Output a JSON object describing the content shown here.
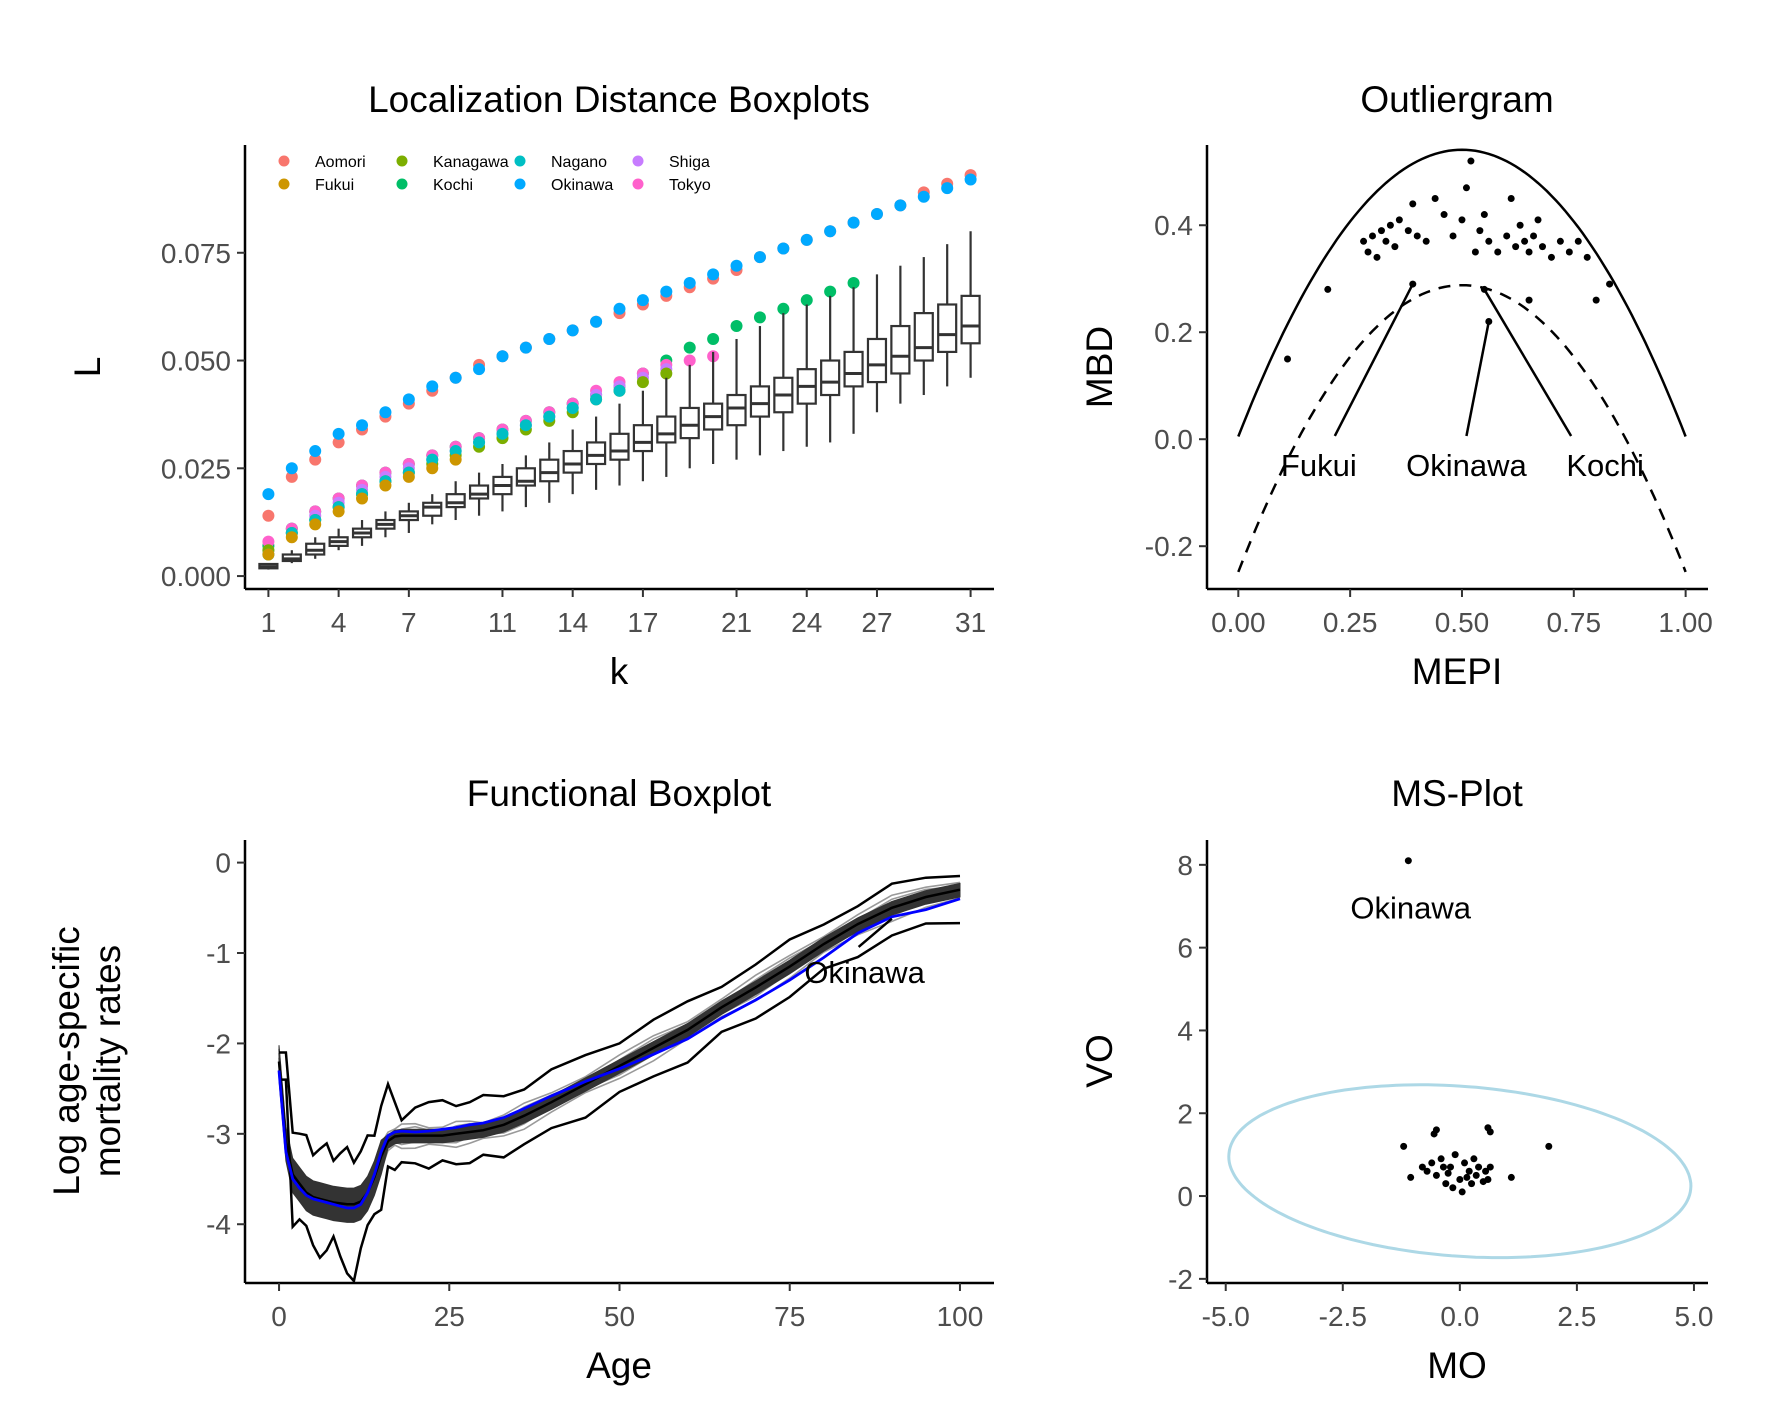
{
  "chart_data": [
    {
      "type": "boxplot",
      "title": "Localization Distance Boxplots",
      "xlabel": "k",
      "ylabel": "L",
      "xlim": [
        0,
        32
      ],
      "ylim": [
        -0.003,
        0.1
      ],
      "x_ticks": [
        1,
        4,
        7,
        11,
        14,
        17,
        21,
        24,
        27,
        31
      ],
      "y_ticks": [
        0.0,
        0.025,
        0.05,
        0.075
      ],
      "y_tick_labels": [
        "0.000",
        "0.025",
        "0.050",
        "0.075"
      ],
      "k": [
        1,
        2,
        3,
        4,
        5,
        6,
        7,
        8,
        9,
        10,
        11,
        12,
        13,
        14,
        15,
        16,
        17,
        18,
        19,
        20,
        21,
        22,
        23,
        24,
        25,
        26,
        27,
        28,
        29,
        30,
        31
      ],
      "legend": {
        "placement": "top-left inside",
        "entries": [
          {
            "name": "Aomori",
            "color": "#F8766D"
          },
          {
            "name": "Fukui",
            "color": "#CD9600"
          },
          {
            "name": "Kanagawa",
            "color": "#7CAE00"
          },
          {
            "name": "Kochi",
            "color": "#00BE67"
          },
          {
            "name": "Nagano",
            "color": "#00BFC4"
          },
          {
            "name": "Okinawa",
            "color": "#00A9FF"
          },
          {
            "name": "Shiga",
            "color": "#C77CFF"
          },
          {
            "name": "Tokyo",
            "color": "#FF61CC"
          }
        ]
      },
      "series": [
        {
          "name": "Aomori",
          "values": [
            0.014,
            0.023,
            0.027,
            0.031,
            0.034,
            0.037,
            0.04,
            0.043,
            0.046,
            0.049,
            0.051,
            0.053,
            0.055,
            0.057,
            0.059,
            0.061,
            0.063,
            0.065,
            0.067,
            0.069,
            0.071,
            0.074,
            0.076,
            0.078,
            0.08,
            0.082,
            0.084,
            0.086,
            0.089,
            0.091,
            0.093
          ]
        },
        {
          "name": "Okinawa",
          "values": [
            0.019,
            0.025,
            0.029,
            0.033,
            0.035,
            0.038,
            0.041,
            0.044,
            0.046,
            0.048,
            0.051,
            0.053,
            0.055,
            0.057,
            0.059,
            0.062,
            0.064,
            0.066,
            0.068,
            0.07,
            0.072,
            0.074,
            0.076,
            0.078,
            0.08,
            0.082,
            0.084,
            0.086,
            0.088,
            0.09,
            0.092
          ]
        },
        {
          "name": "Kochi",
          "values": [
            0.007,
            0.011,
            0.015,
            0.018,
            0.021,
            0.024,
            0.026,
            0.028,
            0.03,
            0.032,
            0.034,
            0.036,
            0.038,
            0.04,
            0.042,
            0.044,
            0.047,
            0.05,
            0.053,
            0.055,
            0.058,
            0.06,
            0.062,
            0.064,
            0.066,
            0.068
          ]
        },
        {
          "name": "Tokyo",
          "values": [
            0.008,
            0.011,
            0.015,
            0.018,
            0.021,
            0.024,
            0.026,
            0.028,
            0.03,
            0.032,
            0.034,
            0.036,
            0.038,
            0.04,
            0.043,
            0.045,
            0.047,
            0.049,
            0.05,
            0.051
          ]
        },
        {
          "name": "Shiga",
          "values": [
            0.006,
            0.01,
            0.014,
            0.017,
            0.02,
            0.023,
            0.025,
            0.027,
            0.029,
            0.031,
            0.033,
            0.035,
            0.037,
            0.039,
            0.042,
            0.044,
            0.046,
            0.048
          ]
        },
        {
          "name": "Kanagawa",
          "values": [
            0.006,
            0.01,
            0.013,
            0.016,
            0.019,
            0.022,
            0.024,
            0.026,
            0.028,
            0.03,
            0.032,
            0.034,
            0.036,
            0.038,
            0.041,
            0.043,
            0.045,
            0.047
          ]
        },
        {
          "name": "Nagano",
          "values": [
            0.005,
            0.01,
            0.013,
            0.016,
            0.019,
            0.022,
            0.024,
            0.027,
            0.029,
            0.031,
            0.033,
            0.035,
            0.037,
            0.039,
            0.041,
            0.043
          ]
        },
        {
          "name": "Fukui",
          "values": [
            0.005,
            0.009,
            0.012,
            0.015,
            0.018,
            0.021,
            0.023,
            0.025,
            0.027
          ]
        }
      ],
      "boxes": {
        "whisker_low": [
          0.0015,
          0.003,
          0.004,
          0.006,
          0.007,
          0.009,
          0.01,
          0.012,
          0.013,
          0.014,
          0.015,
          0.016,
          0.017,
          0.019,
          0.02,
          0.021,
          0.022,
          0.023,
          0.025,
          0.026,
          0.027,
          0.028,
          0.029,
          0.03,
          0.031,
          0.033,
          0.038,
          0.04,
          0.042,
          0.044,
          0.046
        ],
        "q1": [
          0.0018,
          0.0035,
          0.005,
          0.007,
          0.009,
          0.011,
          0.013,
          0.014,
          0.016,
          0.018,
          0.019,
          0.021,
          0.022,
          0.024,
          0.026,
          0.027,
          0.029,
          0.031,
          0.032,
          0.034,
          0.035,
          0.037,
          0.038,
          0.04,
          0.042,
          0.044,
          0.045,
          0.047,
          0.05,
          0.052,
          0.054
        ],
        "median": [
          0.0022,
          0.004,
          0.006,
          0.008,
          0.01,
          0.012,
          0.014,
          0.016,
          0.017,
          0.019,
          0.021,
          0.022,
          0.024,
          0.026,
          0.028,
          0.029,
          0.031,
          0.033,
          0.035,
          0.037,
          0.039,
          0.04,
          0.042,
          0.044,
          0.045,
          0.047,
          0.049,
          0.051,
          0.053,
          0.056,
          0.058
        ],
        "q3": [
          0.0028,
          0.005,
          0.0075,
          0.009,
          0.011,
          0.013,
          0.015,
          0.017,
          0.019,
          0.021,
          0.023,
          0.025,
          0.027,
          0.029,
          0.031,
          0.033,
          0.035,
          0.037,
          0.039,
          0.04,
          0.042,
          0.044,
          0.046,
          0.048,
          0.05,
          0.052,
          0.055,
          0.058,
          0.061,
          0.063,
          0.065
        ],
        "whisker_high": [
          0.003,
          0.006,
          0.009,
          0.011,
          0.013,
          0.015,
          0.017,
          0.019,
          0.022,
          0.024,
          0.026,
          0.028,
          0.031,
          0.034,
          0.037,
          0.04,
          0.043,
          0.046,
          0.049,
          0.052,
          0.055,
          0.058,
          0.061,
          0.063,
          0.065,
          0.067,
          0.07,
          0.072,
          0.074,
          0.077,
          0.08
        ]
      }
    },
    {
      "type": "scatter",
      "title": "Outliergram",
      "xlabel": "MEPI",
      "ylabel": "MBD",
      "xlim": [
        -0.07,
        1.05
      ],
      "ylim": [
        -0.28,
        0.55
      ],
      "x_ticks": [
        0,
        0.25,
        0.5,
        0.75,
        1.0
      ],
      "x_tick_labels": [
        "0.00",
        "0.25",
        "0.50",
        "0.75",
        "1.00"
      ],
      "y_ticks": [
        -0.2,
        0.0,
        0.2,
        0.4
      ],
      "y_tick_labels": [
        "-0.2",
        "0.0",
        "0.2",
        "0.4"
      ],
      "upper_parabola": "y = 0.005 + 2.144*x - 2.144*x^2 (solid)",
      "lower_parabola": "y = upper - 0.253 (dashed)",
      "points": [
        [
          0.11,
          0.15
        ],
        [
          0.2,
          0.28
        ],
        [
          0.28,
          0.37
        ],
        [
          0.29,
          0.35
        ],
        [
          0.3,
          0.38
        ],
        [
          0.31,
          0.34
        ],
        [
          0.32,
          0.39
        ],
        [
          0.33,
          0.37
        ],
        [
          0.34,
          0.4
        ],
        [
          0.35,
          0.36
        ],
        [
          0.36,
          0.41
        ],
        [
          0.38,
          0.39
        ],
        [
          0.39,
          0.44
        ],
        [
          0.4,
          0.38
        ],
        [
          0.42,
          0.37
        ],
        [
          0.44,
          0.45
        ],
        [
          0.46,
          0.42
        ],
        [
          0.48,
          0.38
        ],
        [
          0.5,
          0.41
        ],
        [
          0.51,
          0.47
        ],
        [
          0.52,
          0.52
        ],
        [
          0.53,
          0.35
        ],
        [
          0.54,
          0.39
        ],
        [
          0.55,
          0.42
        ],
        [
          0.56,
          0.37
        ],
        [
          0.58,
          0.35
        ],
        [
          0.6,
          0.38
        ],
        [
          0.61,
          0.45
        ],
        [
          0.62,
          0.36
        ],
        [
          0.63,
          0.4
        ],
        [
          0.64,
          0.37
        ],
        [
          0.65,
          0.35
        ],
        [
          0.66,
          0.38
        ],
        [
          0.67,
          0.41
        ],
        [
          0.68,
          0.36
        ],
        [
          0.7,
          0.34
        ],
        [
          0.72,
          0.37
        ],
        [
          0.74,
          0.35
        ],
        [
          0.76,
          0.37
        ],
        [
          0.78,
          0.34
        ],
        [
          0.8,
          0.26
        ],
        [
          0.83,
          0.29
        ],
        [
          0.39,
          0.29
        ],
        [
          0.55,
          0.28
        ],
        [
          0.56,
          0.22
        ],
        [
          0.65,
          0.26
        ]
      ],
      "labels": [
        {
          "text": "Fukui",
          "point": [
            0.39,
            0.29
          ],
          "at": [
            0.18,
            -0.05
          ]
        },
        {
          "text": "Okinawa",
          "point": [
            0.56,
            0.22
          ],
          "at": [
            0.51,
            -0.05
          ]
        },
        {
          "text": "Kochi",
          "point": [
            0.55,
            0.28
          ],
          "at": [
            0.82,
            -0.05
          ]
        }
      ]
    },
    {
      "type": "line",
      "title": "Functional Boxplot",
      "xlabel": "Age",
      "ylabel": "Log age-specific mortality rates",
      "ylabel_lines": [
        "Log age-specific",
        "mortality rates"
      ],
      "xlim": [
        -5,
        105
      ],
      "ylim": [
        -4.65,
        0.25
      ],
      "x_ticks": [
        0,
        25,
        50,
        75,
        100
      ],
      "y_ticks": [
        -4,
        -3,
        -2,
        -1,
        0
      ],
      "x": [
        0,
        1,
        2,
        3,
        4,
        5,
        6,
        7,
        8,
        9,
        10,
        11,
        12,
        13,
        14,
        15,
        16,
        17,
        18,
        20,
        22,
        24,
        26,
        28,
        30,
        33,
        36,
        40,
        45,
        50,
        55,
        60,
        65,
        70,
        75,
        80,
        85,
        90,
        95,
        100
      ],
      "median": [
        -2.2,
        -3.1,
        -3.45,
        -3.55,
        -3.65,
        -3.7,
        -3.72,
        -3.74,
        -3.76,
        -3.77,
        -3.78,
        -3.78,
        -3.75,
        -3.65,
        -3.48,
        -3.25,
        -3.08,
        -3.03,
        -3.02,
        -3.02,
        -3.02,
        -3.02,
        -3.0,
        -2.98,
        -2.96,
        -2.9,
        -2.8,
        -2.65,
        -2.45,
        -2.25,
        -2.05,
        -1.85,
        -1.6,
        -1.38,
        -1.15,
        -0.9,
        -0.68,
        -0.5,
        -0.38,
        -0.3
      ],
      "okinawa": [
        -2.3,
        -3.2,
        -3.5,
        -3.6,
        -3.68,
        -3.72,
        -3.74,
        -3.76,
        -3.78,
        -3.8,
        -3.82,
        -3.82,
        -3.78,
        -3.65,
        -3.45,
        -3.2,
        -3.02,
        -2.98,
        -2.97,
        -2.98,
        -2.97,
        -2.95,
        -2.93,
        -2.9,
        -2.88,
        -2.82,
        -2.72,
        -2.58,
        -2.42,
        -2.28,
        -2.12,
        -1.95,
        -1.72,
        -1.52,
        -1.3,
        -1.05,
        -0.78,
        -0.6,
        -0.52,
        -0.4
      ],
      "annotation": {
        "text": "Okinawa",
        "point": [
          90,
          -0.62
        ],
        "at": [
          86,
          -1.22
        ]
      }
    },
    {
      "type": "scatter",
      "title": "MS-Plot",
      "xlabel": "MO",
      "ylabel": "VO",
      "xlim": [
        -5.4,
        5.3
      ],
      "ylim": [
        -2.1,
        8.6
      ],
      "x_ticks": [
        -5,
        -2.5,
        0,
        2.5,
        5
      ],
      "x_tick_labels": [
        "-5.0",
        "-2.5",
        "0.0",
        "2.5",
        "5.0"
      ],
      "y_ticks": [
        -2,
        0,
        2,
        4,
        6,
        8
      ],
      "ellipse": {
        "center": [
          0,
          0.6
        ],
        "semi_axes": [
          4.95,
          2.05
        ],
        "rotation_deg": -5,
        "color": "#ADD8E6"
      },
      "points": [
        [
          -1.1,
          8.1
        ],
        [
          -0.5,
          1.6
        ],
        [
          -0.55,
          1.5
        ],
        [
          0.6,
          1.65
        ],
        [
          0.65,
          1.55
        ],
        [
          1.9,
          1.2
        ],
        [
          -1.2,
          1.2
        ],
        [
          -1.05,
          0.45
        ],
        [
          -0.8,
          0.7
        ],
        [
          -0.7,
          0.6
        ],
        [
          -0.6,
          0.8
        ],
        [
          -0.5,
          0.5
        ],
        [
          -0.4,
          0.9
        ],
        [
          -0.3,
          0.3
        ],
        [
          -0.2,
          0.7
        ],
        [
          -0.1,
          1.0
        ],
        [
          0.0,
          0.4
        ],
        [
          0.05,
          0.1
        ],
        [
          0.1,
          0.8
        ],
        [
          0.2,
          0.6
        ],
        [
          0.25,
          0.3
        ],
        [
          0.3,
          0.9
        ],
        [
          0.35,
          0.5
        ],
        [
          0.4,
          0.7
        ],
        [
          0.5,
          0.35
        ],
        [
          0.55,
          0.6
        ],
        [
          0.6,
          0.4
        ],
        [
          0.65,
          0.7
        ],
        [
          1.1,
          0.45
        ],
        [
          -0.25,
          0.55
        ],
        [
          -0.15,
          0.2
        ],
        [
          0.15,
          0.45
        ],
        [
          -0.35,
          0.7
        ]
      ],
      "labels": [
        {
          "text": "Okinawa",
          "at": [
            -1.05,
            6.95
          ]
        }
      ]
    }
  ]
}
